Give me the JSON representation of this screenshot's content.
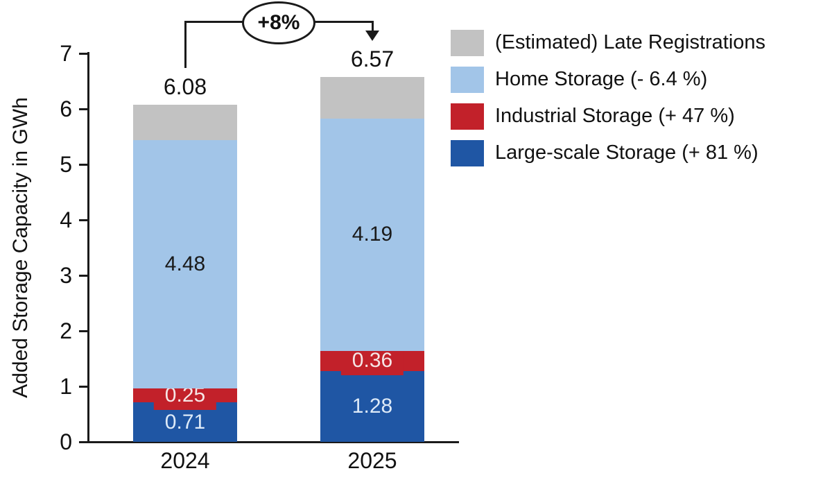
{
  "chart_data": {
    "type": "bar",
    "stacked": true,
    "title": "",
    "ylabel": "Added Storage Capacity in GWh",
    "xlabel": "",
    "ylim": [
      0,
      7
    ],
    "yticks": [
      "0",
      "1",
      "2",
      "3",
      "4",
      "5",
      "6",
      "7"
    ],
    "grid": false,
    "legend_position": "top-right",
    "legend_order": "reversed-of-stack",
    "categories": [
      "2024",
      "2025"
    ],
    "series": [
      {
        "name": "Large-scale Storage (+ 81 %)",
        "values": [
          0.71,
          1.28
        ],
        "labels": [
          "0.71",
          "1.28"
        ],
        "color": "#1f56a4",
        "label_color": "#ddeaf8"
      },
      {
        "name": "Industrial Storage (+ 47 %)",
        "values": [
          0.25,
          0.36
        ],
        "labels": [
          "0.25",
          "0.36"
        ],
        "color": "#c2212a",
        "label_color": "#f6e6e6"
      },
      {
        "name": "Home Storage (- 6.4 %)",
        "values": [
          4.48,
          4.19
        ],
        "labels": [
          "4.48",
          "4.19"
        ],
        "color": "#a2c5e8",
        "label_color": "#1a1a1a"
      },
      {
        "name": "(Estimated) Late Registrations",
        "values": [
          0.64,
          0.74
        ],
        "labels": [
          "",
          ""
        ],
        "color": "#c2c2c2",
        "label_color": "#1a1a1a"
      }
    ],
    "totals": [
      "6.08",
      "6.57"
    ],
    "annotation": {
      "text": "+8%",
      "from_category": "2024",
      "to_category": "2025"
    },
    "colors": {
      "axis": "#1a1a1a",
      "text": "#111111",
      "background": "#ffffff"
    }
  }
}
